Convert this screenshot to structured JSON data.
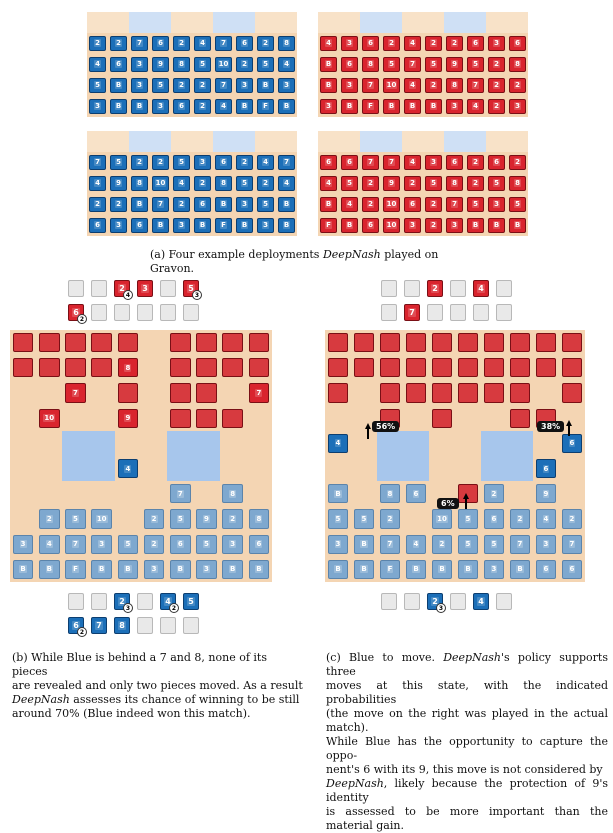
{
  "captions": {
    "a": "(a) Four example deployments DeepNash played on Gravon.",
    "a_prefix": "(a) Four example deployments ",
    "a_italic": "DeepNash",
    "a_suffix": " played on Gravon.",
    "b_1": "(b) While Blue is behind a 7 and 8, none of its pieces",
    "b_2": "are revealed and only two pieces moved. As a result",
    "b_3_italic": "DeepNash",
    "b_3": " assesses its chance of winning to be still",
    "b_4": "around 70% (Blue indeed won this match).",
    "c_1": "(c) Blue to move. ",
    "c_1_italic": "DeepNash",
    "c_1_b": "'s policy supports three",
    "c_2": "moves at this state, with the indicated probabilities",
    "c_3": "(the move on the right was played in the actual match).",
    "c_4": "While Blue has the opportunity to capture the oppo-",
    "c_5": "nent's 6 with its 9, this move is not considered by",
    "c_6_italic": "DeepNash",
    "c_6": ", likely because the protection of 9's identity",
    "c_7": "is assessed to be more important than the material gain."
  },
  "deployments": [
    {
      "color": "blue",
      "rows": [
        [
          "2",
          "2",
          "7",
          "6",
          "2",
          "4",
          "7",
          "6",
          "2",
          "8"
        ],
        [
          "4",
          "6",
          "3",
          "9",
          "8",
          "5",
          "10",
          "2",
          "5",
          "4"
        ],
        [
          "5",
          "B",
          "3",
          "5",
          "2",
          "2",
          "7",
          "3",
          "B",
          "3"
        ],
        [
          "3",
          "B",
          "B",
          "3",
          "6",
          "2",
          "4",
          "B",
          "F",
          "B"
        ]
      ]
    },
    {
      "color": "red",
      "rows": [
        [
          "4",
          "3",
          "6",
          "2",
          "4",
          "2",
          "2",
          "6",
          "3",
          "6"
        ],
        [
          "B",
          "6",
          "8",
          "5",
          "7",
          "5",
          "9",
          "5",
          "2",
          "8"
        ],
        [
          "B",
          "3",
          "7",
          "10",
          "4",
          "2",
          "8",
          "7",
          "2",
          "2"
        ],
        [
          "3",
          "B",
          "F",
          "B",
          "B",
          "B",
          "3",
          "4",
          "2",
          "3"
        ]
      ]
    },
    {
      "color": "blue",
      "rows": [
        [
          "7",
          "5",
          "2",
          "2",
          "5",
          "3",
          "6",
          "2",
          "4",
          "7"
        ],
        [
          "4",
          "9",
          "8",
          "10",
          "4",
          "2",
          "8",
          "5",
          "2",
          "4"
        ],
        [
          "2",
          "2",
          "B",
          "7",
          "2",
          "6",
          "B",
          "3",
          "5",
          "B"
        ],
        [
          "6",
          "3",
          "6",
          "B",
          "3",
          "B",
          "F",
          "B",
          "3",
          "B"
        ]
      ]
    },
    {
      "color": "red",
      "rows": [
        [
          "6",
          "6",
          "7",
          "7",
          "4",
          "3",
          "6",
          "2",
          "6",
          "2"
        ],
        [
          "4",
          "5",
          "2",
          "9",
          "2",
          "5",
          "8",
          "2",
          "5",
          "8"
        ],
        [
          "B",
          "4",
          "2",
          "10",
          "6",
          "2",
          "7",
          "5",
          "3",
          "5"
        ],
        [
          "F",
          "B",
          "6",
          "10",
          "3",
          "2",
          "3",
          "B",
          "B",
          "B"
        ]
      ]
    }
  ],
  "board_b": {
    "cells": [
      [
        "r",
        "r",
        "r",
        "r",
        "r",
        "",
        "r",
        "r",
        "r",
        "r"
      ],
      [
        "r",
        "r",
        "r",
        "r",
        "8",
        "",
        "r",
        "r",
        "r",
        "r"
      ],
      [
        "",
        "",
        "7",
        "",
        "r",
        "",
        "r",
        "r",
        "",
        "7"
      ],
      [
        "",
        "10",
        "",
        "",
        "9",
        "",
        "r",
        "r",
        "r",
        ""
      ],
      [
        "",
        "",
        "",
        "",
        "",
        "",
        "",
        "",
        "",
        ""
      ],
      [
        "",
        "",
        "",
        "",
        "4",
        "",
        "",
        "",
        "",
        ""
      ],
      [
        "",
        "",
        "",
        "",
        "",
        "",
        "7",
        "",
        "8",
        ""
      ],
      [
        "",
        "2",
        "5",
        "10",
        "",
        "2",
        "5",
        "9",
        "2",
        "8"
      ],
      [
        "3",
        "4",
        "7",
        "3",
        "5",
        "2",
        "6",
        "5",
        "3",
        "6"
      ],
      [
        "B",
        "B",
        "F",
        "B",
        "B",
        "3",
        "B",
        "3",
        "B",
        "B"
      ]
    ],
    "tray_top": [
      [
        "",
        "",
        "2",
        "3",
        "",
        "5"
      ],
      [
        "6",
        "",
        "",
        "",
        "",
        ""
      ]
    ],
    "tray_top_badges": [
      [
        "",
        "",
        "4",
        "",
        "",
        "3"
      ],
      [
        "2",
        "",
        "",
        "",
        "",
        ""
      ]
    ],
    "tray_bottom": [
      [
        "",
        "",
        "2",
        "",
        "4",
        "5"
      ],
      [
        "6",
        "7",
        "8",
        "",
        "",
        ""
      ]
    ],
    "tray_bottom_badges": [
      [
        "",
        "",
        "3",
        "",
        "2",
        ""
      ],
      [
        "2",
        "",
        "",
        "",
        "",
        ""
      ]
    ]
  },
  "board_c": {
    "cells": [
      [
        "r",
        "r",
        "r",
        "r",
        "r",
        "r",
        "r",
        "r",
        "r",
        "r"
      ],
      [
        "r",
        "r",
        "r",
        "r",
        "r",
        "r",
        "r",
        "r",
        "r",
        "r"
      ],
      [
        "r",
        "",
        "r",
        "r",
        "r",
        "r",
        "r",
        "r",
        "",
        "r"
      ],
      [
        "",
        "",
        "r",
        "",
        "r",
        "",
        "",
        "r",
        "r",
        ""
      ],
      [
        "4",
        "",
        "",
        "",
        "",
        "",
        "",
        "",
        "",
        "6"
      ],
      [
        "",
        "",
        "",
        "",
        "",
        "",
        "",
        "",
        "6",
        ""
      ],
      [
        "B",
        "",
        "8",
        "6",
        "",
        "r",
        "2",
        "",
        "9",
        ""
      ],
      [
        "5",
        "5",
        "2",
        "",
        "10",
        "5",
        "6",
        "2",
        "4",
        "2"
      ],
      [
        "3",
        "B",
        "7",
        "4",
        "2",
        "5",
        "5",
        "7",
        "3",
        "7"
      ],
      [
        "B",
        "B",
        "F",
        "B",
        "B",
        "B",
        "3",
        "B",
        "6",
        "6"
      ]
    ],
    "tray_top": [
      [
        "",
        "",
        "2",
        "",
        "4",
        ""
      ],
      [
        "",
        "7",
        "",
        "",
        "",
        ""
      ]
    ],
    "tray_bottom": [
      [
        "",
        "",
        "2",
        "",
        "4",
        ""
      ]
    ],
    "tray_bottom_badges": [
      [
        "",
        "",
        "3",
        "",
        "",
        ""
      ]
    ],
    "probs": [
      "56%",
      "38%",
      "6%"
    ]
  }
}
